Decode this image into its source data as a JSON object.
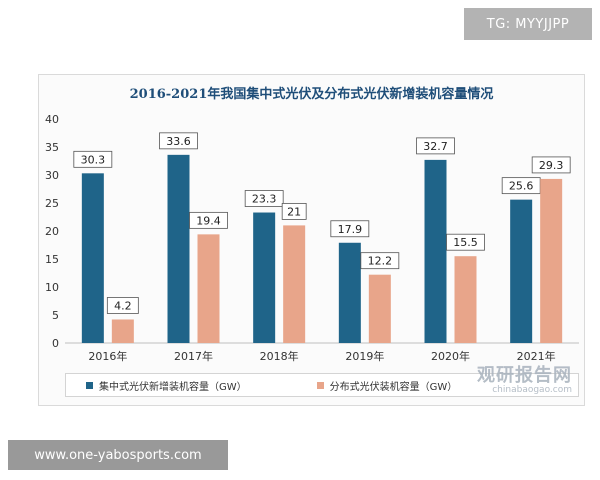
{
  "overlays": {
    "tg_label": "TG: MYYJJPP",
    "site_label": "www.one-yabosports.com"
  },
  "watermark": {
    "main": "观研报告网",
    "sub": "chinabaogao.com"
  },
  "colors": {
    "series_centralized": "#1f6489",
    "series_distributed": "#e8a58a"
  },
  "chart_data": {
    "type": "bar",
    "title": "2016-2021年我国集中式光伏及分布式光伏新增装机容量情况",
    "categories": [
      "2016年",
      "2017年",
      "2018年",
      "2019年",
      "2020年",
      "2021年"
    ],
    "series": [
      {
        "name": "集中式光伏新增装机容量（GW）",
        "values": [
          30.3,
          33.6,
          23.3,
          17.9,
          32.7,
          25.6
        ],
        "labels": [
          "30.3",
          "33.6",
          "23.3",
          "17.9",
          "32.7",
          "25.6"
        ]
      },
      {
        "name": "分布式光伏装机容量（GW）",
        "values": [
          4.2,
          19.4,
          21,
          12.2,
          15.5,
          29.3
        ],
        "labels": [
          "4.2",
          "19.4",
          "21",
          "12.2",
          "15.5",
          "29.3"
        ]
      }
    ],
    "yticks": [
      "0",
      "5",
      "10",
      "15",
      "20",
      "25",
      "30",
      "35",
      "40"
    ],
    "ylim": [
      0,
      40
    ],
    "grid": false,
    "legend": "bottom"
  }
}
